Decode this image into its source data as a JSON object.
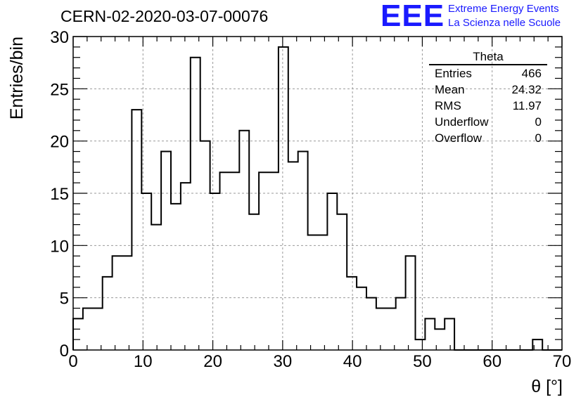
{
  "header": {
    "title": "CERN-02-2020-03-07-00076",
    "logo_text": "EEE",
    "logo_line1": "Extreme Energy Events",
    "logo_line2": "La Scienza nelle Scuole"
  },
  "stats": {
    "title": "Theta",
    "rows": [
      {
        "label": "Entries",
        "value": "466"
      },
      {
        "label": "Mean",
        "value": "24.32"
      },
      {
        "label": "RMS",
        "value": "11.97"
      },
      {
        "label": "Underflow",
        "value": "0"
      },
      {
        "label": "Overflow",
        "value": "0"
      }
    ]
  },
  "colors": {
    "logo": "#1a1aff",
    "histogram": "#000000",
    "grid": "#999999"
  },
  "chart_data": {
    "type": "bar",
    "histogram": true,
    "title": "CERN-02-2020-03-07-00076",
    "xlabel": "θ [°]",
    "ylabel": "Entries/bin",
    "xlim": [
      0,
      70
    ],
    "ylim": [
      0,
      30
    ],
    "grid": true,
    "legend": "top-right",
    "xticks": [
      0,
      10,
      20,
      30,
      40,
      50,
      60,
      70
    ],
    "yticks": [
      0,
      5,
      10,
      15,
      20,
      25,
      30
    ],
    "bin_edges": [
      0,
      1.4,
      2.8,
      4.2,
      5.6,
      7.0,
      8.4,
      9.8,
      11.2,
      12.6,
      14.0,
      15.4,
      16.8,
      18.2,
      19.6,
      21.0,
      22.4,
      23.8,
      25.2,
      26.6,
      28.0,
      29.4,
      30.8,
      32.2,
      33.6,
      35.0,
      36.4,
      37.8,
      39.2,
      40.6,
      42.0,
      43.4,
      44.8,
      46.2,
      47.6,
      49.0,
      50.4,
      51.8,
      53.2,
      54.6,
      56.0,
      57.4,
      58.8,
      60.2,
      61.6,
      63.0,
      64.4,
      65.8,
      67.2,
      68.6,
      70.0
    ],
    "values": [
      3,
      4,
      4,
      7,
      9,
      9,
      23,
      15,
      12,
      19,
      14,
      16,
      28,
      20,
      15,
      17,
      17,
      21,
      13,
      17,
      17,
      29,
      18,
      19,
      11,
      11,
      15,
      13,
      7,
      6,
      5,
      4,
      4,
      5,
      9,
      1,
      3,
      2,
      3,
      0,
      0,
      0,
      0,
      0,
      0,
      0,
      0,
      1,
      0,
      0
    ]
  }
}
